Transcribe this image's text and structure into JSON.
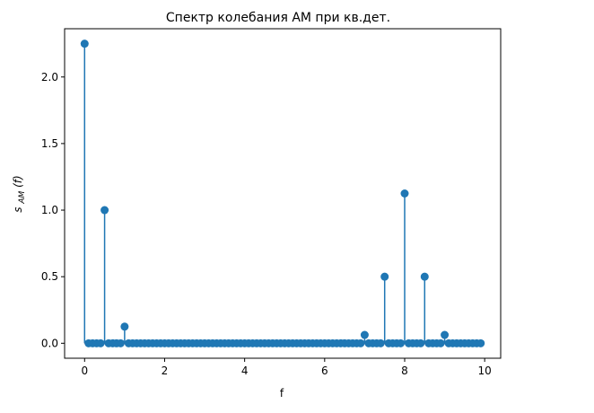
{
  "chart_data": {
    "type": "stem",
    "title": "Спектр колебания АМ при кв.дет.",
    "xlabel": "f",
    "ylabel": {
      "main": "s",
      "sub": "AM",
      "rest": "(f)"
    },
    "xlim": [
      -0.5,
      10.4
    ],
    "ylim": [
      -0.1125,
      2.3625
    ],
    "xticks": [
      0,
      2,
      4,
      6,
      8,
      10
    ],
    "yticks": [
      0.0,
      0.5,
      1.0,
      1.5,
      2.0
    ],
    "xtick_labels": [
      "0",
      "2",
      "4",
      "6",
      "8",
      "10"
    ],
    "ytick_labels": [
      "0.0",
      "0.5",
      "1.0",
      "1.5",
      "2.0"
    ],
    "x_start": 0,
    "x_step": 0.1,
    "x_stop": 9.9,
    "nonzero": [
      {
        "x": 0.0,
        "y": 2.25
      },
      {
        "x": 0.5,
        "y": 1.0
      },
      {
        "x": 1.0,
        "y": 0.125
      },
      {
        "x": 7.0,
        "y": 0.0625
      },
      {
        "x": 7.5,
        "y": 0.5
      },
      {
        "x": 8.0,
        "y": 1.125
      },
      {
        "x": 8.5,
        "y": 0.5
      },
      {
        "x": 9.0,
        "y": 0.0625
      }
    ],
    "grid": false,
    "legend": false,
    "colors": {
      "marker": "#1f77b4",
      "stem": "#1f77b4",
      "baseline": "#d62728"
    }
  }
}
